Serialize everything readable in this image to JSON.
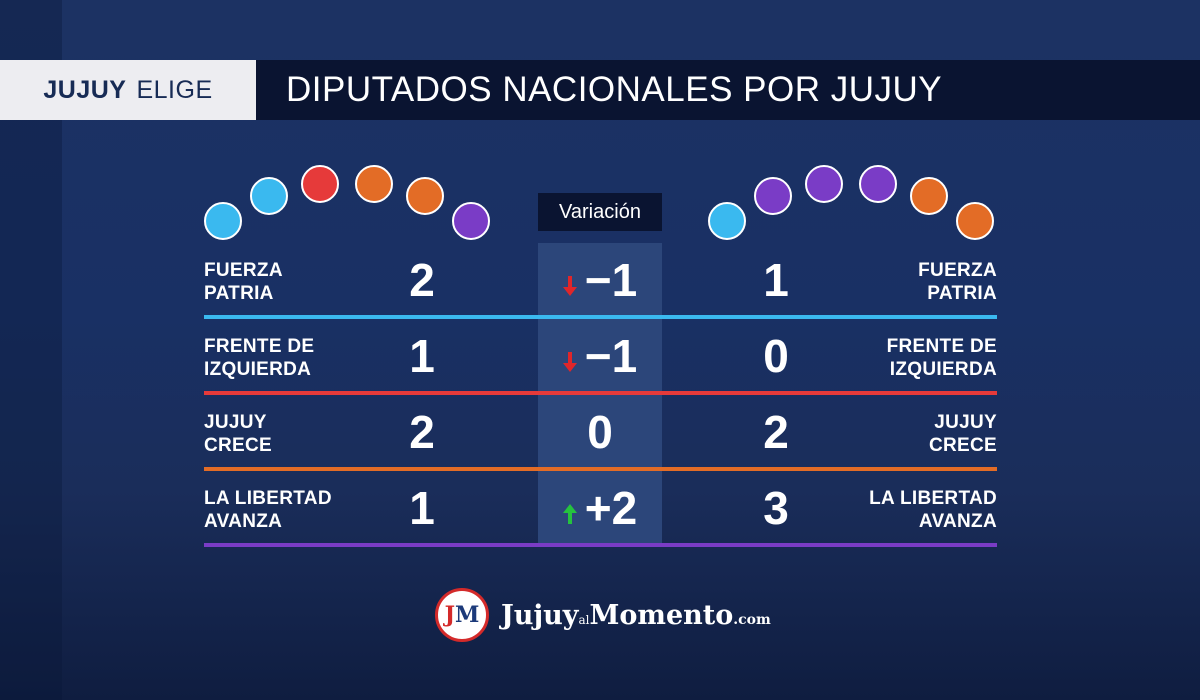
{
  "header": {
    "brand_strong": "JUJUY",
    "brand_light": "ELIGE",
    "title": "DIPUTADOS NACIONALES POR JUJUY"
  },
  "colors": {
    "fuerza_patria": "#3ab9ef",
    "frente_izquierda": "#e63a3a",
    "jujuy_crece": "#e36c26",
    "la_libertad_avanza": "#7a3cc6",
    "arrow_down": "#e0262a",
    "arrow_up": "#25c33e"
  },
  "seats_before": [
    "fuerza_patria",
    "fuerza_patria",
    "frente_izquierda",
    "jujuy_crece",
    "jujuy_crece",
    "la_libertad_avanza"
  ],
  "seats_after": [
    "fuerza_patria",
    "la_libertad_avanza",
    "la_libertad_avanza",
    "la_libertad_avanza",
    "jujuy_crece",
    "jujuy_crece"
  ],
  "variation_label": "Variación",
  "rows": [
    {
      "key": "fuerza_patria",
      "party_l1": "FUERZA",
      "party_l2": "PATRIA",
      "before": "2",
      "variation": "−1",
      "direction": "down",
      "after": "1"
    },
    {
      "key": "frente_izquierda",
      "party_l1": "FRENTE DE",
      "party_l2": "IZQUIERDA",
      "before": "1",
      "variation": "−1",
      "direction": "down",
      "after": "0"
    },
    {
      "key": "jujuy_crece",
      "party_l1": "JUJUY",
      "party_l2": "CRECE",
      "before": "2",
      "variation": "0",
      "direction": "none",
      "after": "2"
    },
    {
      "key": "la_libertad_avanza",
      "party_l1": "LA LIBERTAD",
      "party_l2": "AVANZA",
      "before": "1",
      "variation": "+2",
      "direction": "up",
      "after": "3"
    }
  ],
  "logo": {
    "badge_j": "J",
    "badge_m": "M",
    "part1": "Jujuy",
    "part2": "al",
    "part3": "Momento",
    "part4": ".com"
  }
}
